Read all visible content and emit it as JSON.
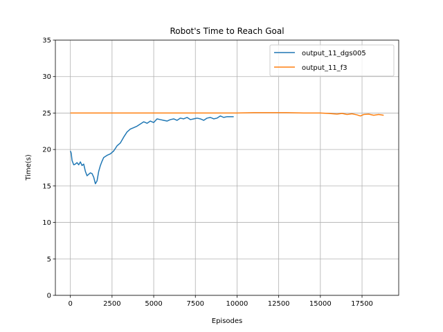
{
  "chart_data": {
    "type": "line",
    "title": "Robot's Time to Reach Goal",
    "xlabel": "Episodes",
    "ylabel": "Time(s)",
    "xlim": [
      -900,
      19700
    ],
    "ylim": [
      0,
      35
    ],
    "xticks": [
      0,
      2500,
      5000,
      7500,
      10000,
      12500,
      15000,
      17500
    ],
    "yticks": [
      0,
      5,
      10,
      15,
      20,
      25,
      30,
      35
    ],
    "grid": true,
    "legend_position": "top-right",
    "series": [
      {
        "name": "output_11_dgs005",
        "color": "#1f77b4",
        "x": [
          0,
          50,
          100,
          150,
          200,
          300,
          400,
          500,
          600,
          700,
          800,
          900,
          1000,
          1100,
          1200,
          1300,
          1400,
          1500,
          1600,
          1700,
          1800,
          1900,
          2000,
          2200,
          2400,
          2600,
          2800,
          3000,
          3200,
          3400,
          3600,
          3800,
          4000,
          4200,
          4400,
          4600,
          4800,
          5000,
          5200,
          5400,
          5600,
          5800,
          6000,
          6200,
          6400,
          6600,
          6800,
          7000,
          7200,
          7400,
          7600,
          7800,
          8000,
          8200,
          8400,
          8600,
          8800,
          9000,
          9200,
          9400,
          9600,
          9800
        ],
        "y": [
          19.8,
          19.5,
          18.5,
          18.2,
          17.9,
          18.0,
          18.2,
          17.9,
          18.3,
          17.8,
          18.0,
          17.0,
          16.4,
          16.6,
          16.8,
          16.7,
          16.2,
          15.3,
          15.7,
          17.0,
          17.8,
          18.4,
          18.9,
          19.2,
          19.4,
          19.8,
          20.5,
          20.9,
          21.7,
          22.4,
          22.8,
          23.0,
          23.2,
          23.5,
          23.8,
          23.6,
          23.9,
          23.7,
          24.2,
          24.1,
          24.0,
          23.9,
          24.1,
          24.2,
          24.0,
          24.3,
          24.2,
          24.4,
          24.1,
          24.2,
          24.3,
          24.2,
          24.0,
          24.3,
          24.4,
          24.2,
          24.3,
          24.6,
          24.4,
          24.5,
          24.5,
          24.5
        ]
      },
      {
        "name": "output_11_f3",
        "color": "#ff7f0e",
        "x": [
          0,
          1000,
          2000,
          3000,
          4000,
          5000,
          6000,
          7000,
          8000,
          9000,
          10000,
          11000,
          12000,
          13000,
          14000,
          15000,
          15500,
          16000,
          16300,
          16600,
          16900,
          17200,
          17400,
          17600,
          17900,
          18200,
          18500,
          18800
        ],
        "y": [
          25.0,
          25.0,
          25.0,
          25.0,
          25.0,
          25.0,
          25.0,
          25.0,
          25.0,
          25.0,
          25.0,
          25.05,
          25.05,
          25.05,
          25.0,
          25.0,
          24.95,
          24.85,
          24.95,
          24.8,
          24.9,
          24.75,
          24.6,
          24.8,
          24.85,
          24.7,
          24.8,
          24.7
        ]
      }
    ]
  }
}
